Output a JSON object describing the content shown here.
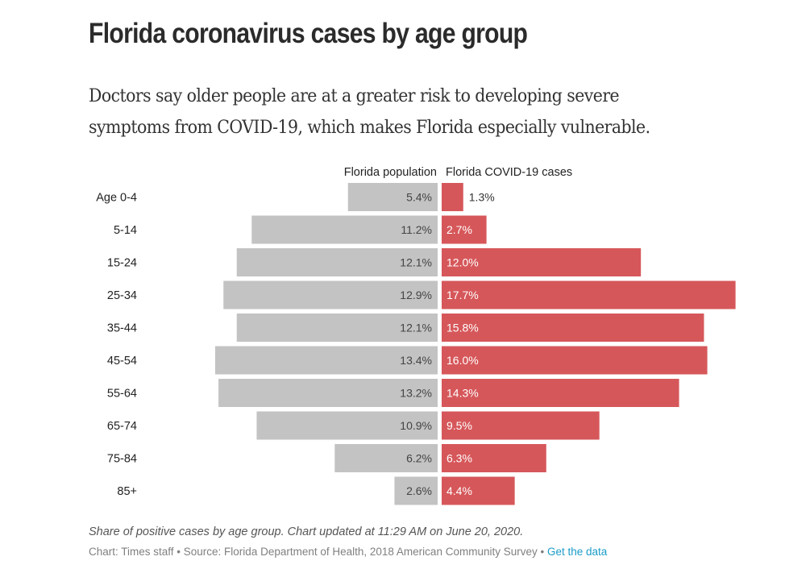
{
  "header": {
    "title": "Florida coronavirus cases by age group",
    "subtitle": "Doctors say older people are at a greater risk to developing severe symptoms from COVID-19, which makes Florida especially vulnerable."
  },
  "footer": {
    "note": "Share of positive cases by age group. Chart updated at 11:29 AM on June 20, 2020.",
    "credit_chart": "Chart: Times staff",
    "separator": " • ",
    "credit_source": "Source: Florida Department of Health, 2018 American Community Survey",
    "data_link": "Get the data"
  },
  "colors": {
    "population": "#c3c3c3",
    "cases": "#d6575a",
    "link": "#1a9cc8",
    "text": "#2b2b2b"
  },
  "chart_data": {
    "type": "bar",
    "orientation": "horizontal-diverging",
    "title": "Florida coronavirus cases by age group",
    "unit": "%",
    "categories": [
      "Age 0-4",
      "5-14",
      "15-24",
      "25-34",
      "35-44",
      "45-54",
      "55-64",
      "65-74",
      "75-84",
      "85+"
    ],
    "series": [
      {
        "name": "Florida population",
        "side": "left",
        "values": [
          5.4,
          11.2,
          12.1,
          12.9,
          12.1,
          13.4,
          13.2,
          10.9,
          6.2,
          2.6
        ],
        "labels": [
          "5.4%",
          "11.2%",
          "12.1%",
          "12.9%",
          "12.1%",
          "13.4%",
          "13.2%",
          "10.9%",
          "6.2%",
          "2.6%"
        ]
      },
      {
        "name": "Florida COVID-19 cases",
        "side": "right",
        "values": [
          1.3,
          2.7,
          12.0,
          17.7,
          15.8,
          16.0,
          14.3,
          9.5,
          6.3,
          4.4
        ],
        "labels": [
          "1.3%",
          "2.7%",
          "12.0%",
          "17.7%",
          "15.8%",
          "16.0%",
          "14.3%",
          "9.5%",
          "6.3%",
          "4.4%"
        ]
      }
    ],
    "xlim": [
      0,
      17.7
    ],
    "grid": false,
    "legend": "top-center (series headers above each side)"
  }
}
